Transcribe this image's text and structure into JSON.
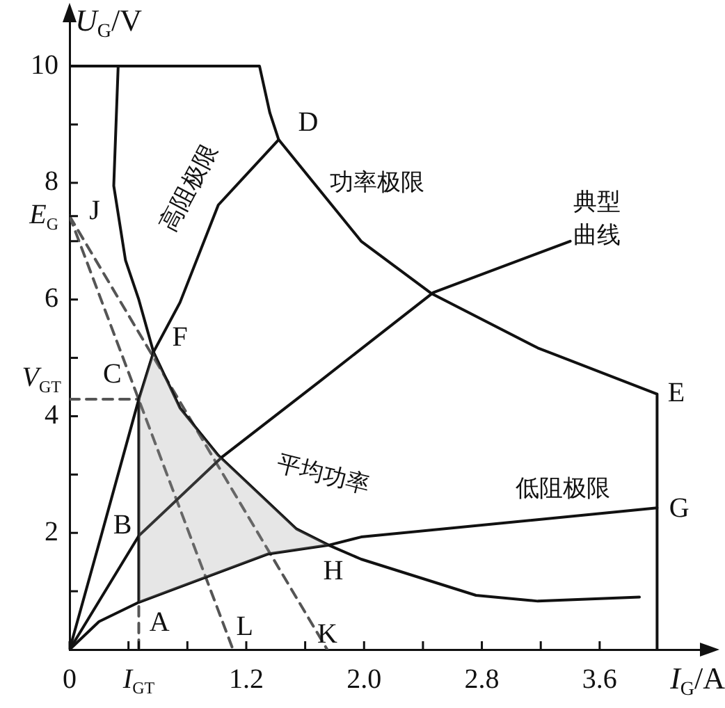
{
  "chart_data": {
    "type": "line",
    "xlabel": "I$_{G}$/A",
    "ylabel": "U$_{G}$/V",
    "xlim": [
      0,
      4.3
    ],
    "ylim": [
      0,
      10.8
    ],
    "xticks": [
      0,
      {
        "value": 0.4,
        "label": null
      },
      {
        "value": 0.47,
        "label": "I$_{GT}$"
      },
      {
        "value": 0.8,
        "label": null
      },
      1.2,
      {
        "value": 1.6,
        "label": null
      },
      {
        "value": 2,
        "label": "2.0"
      },
      {
        "value": 2.4,
        "label": null
      },
      2.8,
      {
        "value": 3.2,
        "label": null
      },
      3.6
    ],
    "yticks": [
      {
        "value": 1,
        "label": null
      },
      2,
      {
        "value": 3,
        "label": null
      },
      4,
      {
        "value": 5,
        "label": null
      },
      6,
      {
        "value": 7,
        "label": null
      },
      {
        "value": 7.43,
        "label": "E$_{G}$"
      },
      8,
      {
        "value": 9,
        "label": null
      },
      10
    ],
    "marker": "none",
    "legend": false,
    "series": [
      {
        "type": "area",
        "color": "#9a9a9a",
        "x": [
          0.47,
          0.47,
          0.57,
          0.75,
          1.01,
          1.54,
          1.76,
          1.35,
          0.47
        ],
        "values": [
          0.81,
          4.29,
          5.1,
          4.14,
          3.33,
          2.07,
          1.79,
          1.64,
          0.81
        ]
      },
      {
        "color": "#111111",
        "x": [
          0,
          1.29,
          1.36,
          1.42,
          1.98,
          2.46,
          3.18,
          3.99,
          3.99
        ],
        "values": [
          10,
          10,
          9.2,
          8.74,
          7.0,
          6.1,
          5.17,
          4.38,
          0
        ]
      },
      {
        "color": "#111111",
        "x": [
          0,
          0.22,
          0.47,
          0.57,
          0.47,
          0.38,
          0.3,
          0.33
        ],
        "values": [
          0,
          2,
          4.29,
          5.1,
          6,
          6.67,
          7.95,
          10
        ]
      },
      {
        "color": "#111111",
        "x": [
          0.57,
          0.75,
          1.01,
          1.42
        ],
        "values": [
          5.1,
          5.95,
          7.62,
          8.74
        ]
      },
      {
        "color": "#111111",
        "x": [
          0.57,
          0.75,
          1.01,
          1.54,
          1.76,
          1.98,
          2.76,
          3.18,
          3.87
        ],
        "values": [
          5.1,
          4.14,
          3.33,
          2.07,
          1.79,
          1.55,
          0.93,
          0.83,
          0.9
        ]
      },
      {
        "color": "#111111",
        "x": [
          0,
          0.2,
          0.47,
          1.35,
          1.76,
          1.98,
          3.99
        ],
        "values": [
          0,
          0.48,
          0.81,
          1.64,
          1.79,
          1.93,
          2.43
        ]
      },
      {
        "color": "#111111",
        "x": [
          0,
          0.47,
          1.04,
          1.7,
          2.47,
          3.4
        ],
        "values": [
          0,
          1.95,
          3.31,
          4.6,
          6.12,
          7.0
        ]
      },
      {
        "color": "#111111",
        "x": [
          0.47,
          0.47
        ],
        "values": [
          0.81,
          4.29
        ]
      },
      {
        "color": "#555555",
        "line_style": "dashed",
        "x": [
          0,
          0.47
        ],
        "values": [
          4.29,
          4.29
        ]
      },
      {
        "color": "#555555",
        "line_style": "dashed",
        "x": [
          0.47,
          0.47
        ],
        "values": [
          0,
          0.81
        ]
      },
      {
        "color": "#555555",
        "line_style": "dashed",
        "x": [
          0,
          1.11
        ],
        "values": [
          7.43,
          0
        ]
      },
      {
        "color": "#555555",
        "line_style": "dashed",
        "x": [
          0,
          1.75
        ],
        "values": [
          7.43,
          0
        ]
      }
    ],
    "annotations": [
      "高阻极限",
      "功率极限",
      "典型曲线",
      "平均功率",
      "低阻极限",
      "A",
      "B",
      "C",
      "D",
      "E",
      "F",
      "G",
      "H",
      "J",
      "K",
      "L",
      "V$_{GT}$"
    ]
  }
}
